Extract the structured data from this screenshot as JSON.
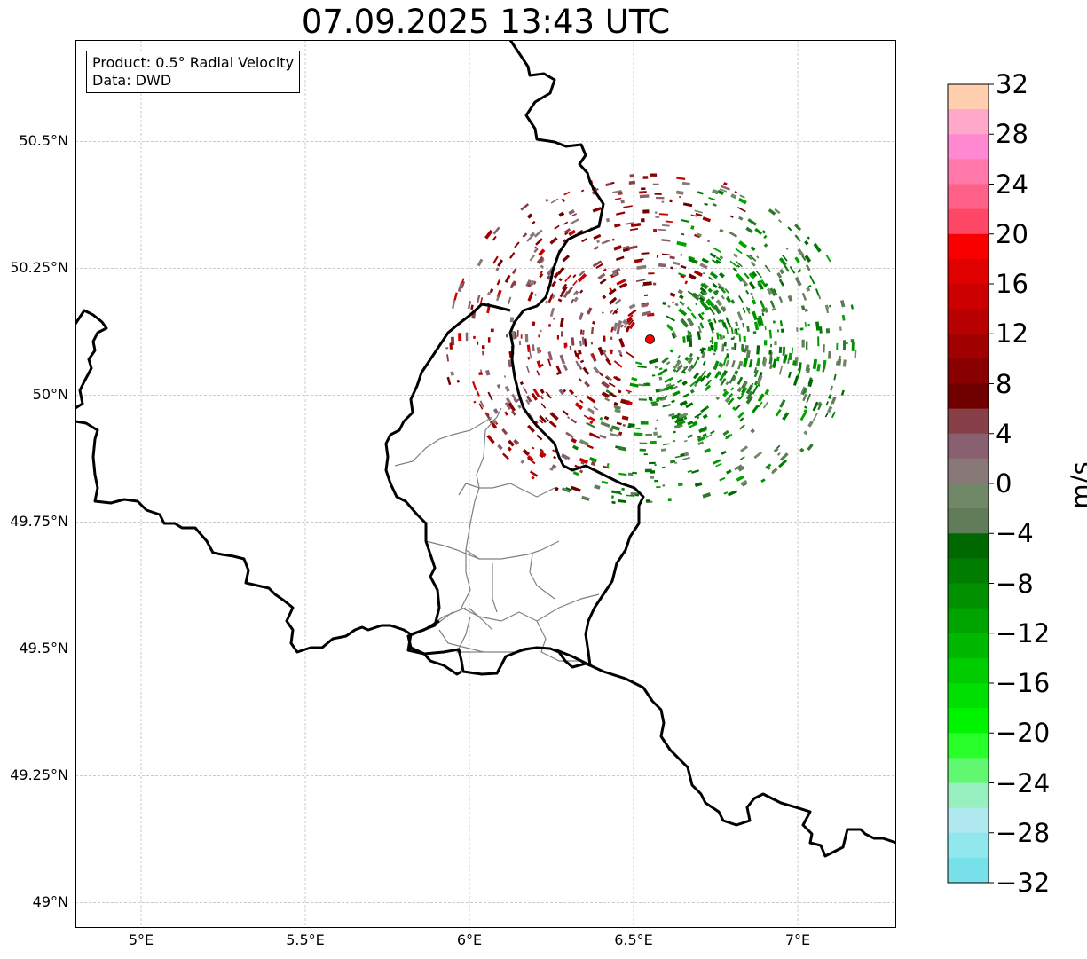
{
  "title": "07.09.2025 13:43 UTC",
  "info": {
    "product": "Product: 0.5° Radial Velocity",
    "data": "Data: DWD"
  },
  "axes": {
    "lon_range": [
      4.8,
      7.3
    ],
    "lat_range": [
      48.95,
      50.7
    ],
    "lon_ticks": [
      {
        "value": 5.0,
        "label": "5°E"
      },
      {
        "value": 5.5,
        "label": "5.5°E"
      },
      {
        "value": 6.0,
        "label": "6°E"
      },
      {
        "value": 6.5,
        "label": "6.5°E"
      },
      {
        "value": 7.0,
        "label": "7°E"
      }
    ],
    "lat_ticks": [
      {
        "value": 50.5,
        "label": "50.5°N"
      },
      {
        "value": 50.25,
        "label": "50.25°N"
      },
      {
        "value": 50.0,
        "label": "50°N"
      },
      {
        "value": 49.75,
        "label": "49.75°N"
      },
      {
        "value": 49.5,
        "label": "49.5°N"
      },
      {
        "value": 49.25,
        "label": "49.25°N"
      },
      {
        "value": 49.0,
        "label": "49°N"
      }
    ],
    "gridlines": true
  },
  "radar_site": {
    "lon": 6.55,
    "lat": 50.11,
    "color": "#ff0000"
  },
  "colorbar": {
    "label": "m/s",
    "min": -32,
    "max": 32,
    "tick_labels": [
      "32",
      "28",
      "24",
      "20",
      "16",
      "12",
      "8",
      "4",
      "0",
      "−4",
      "−8",
      "−12",
      "−16",
      "−20",
      "−24",
      "−28",
      "−32"
    ],
    "colors_top_to_bottom": [
      "#ffcfb0",
      "#ffa8c8",
      "#ff88d0",
      "#ff78a8",
      "#ff6088",
      "#ff4868",
      "#f80000",
      "#e00000",
      "#cc0000",
      "#b80000",
      "#a00000",
      "#880000",
      "#700000",
      "#884048",
      "#886070",
      "#887878",
      "#708868",
      "#607c58",
      "#006800",
      "#007c00",
      "#009000",
      "#00a400",
      "#00b800",
      "#00cc00",
      "#00e000",
      "#00f400",
      "#28ff28",
      "#60f870",
      "#98f0c0",
      "#b0e8f0",
      "#90e8ec",
      "#78e0e8"
    ]
  }
}
